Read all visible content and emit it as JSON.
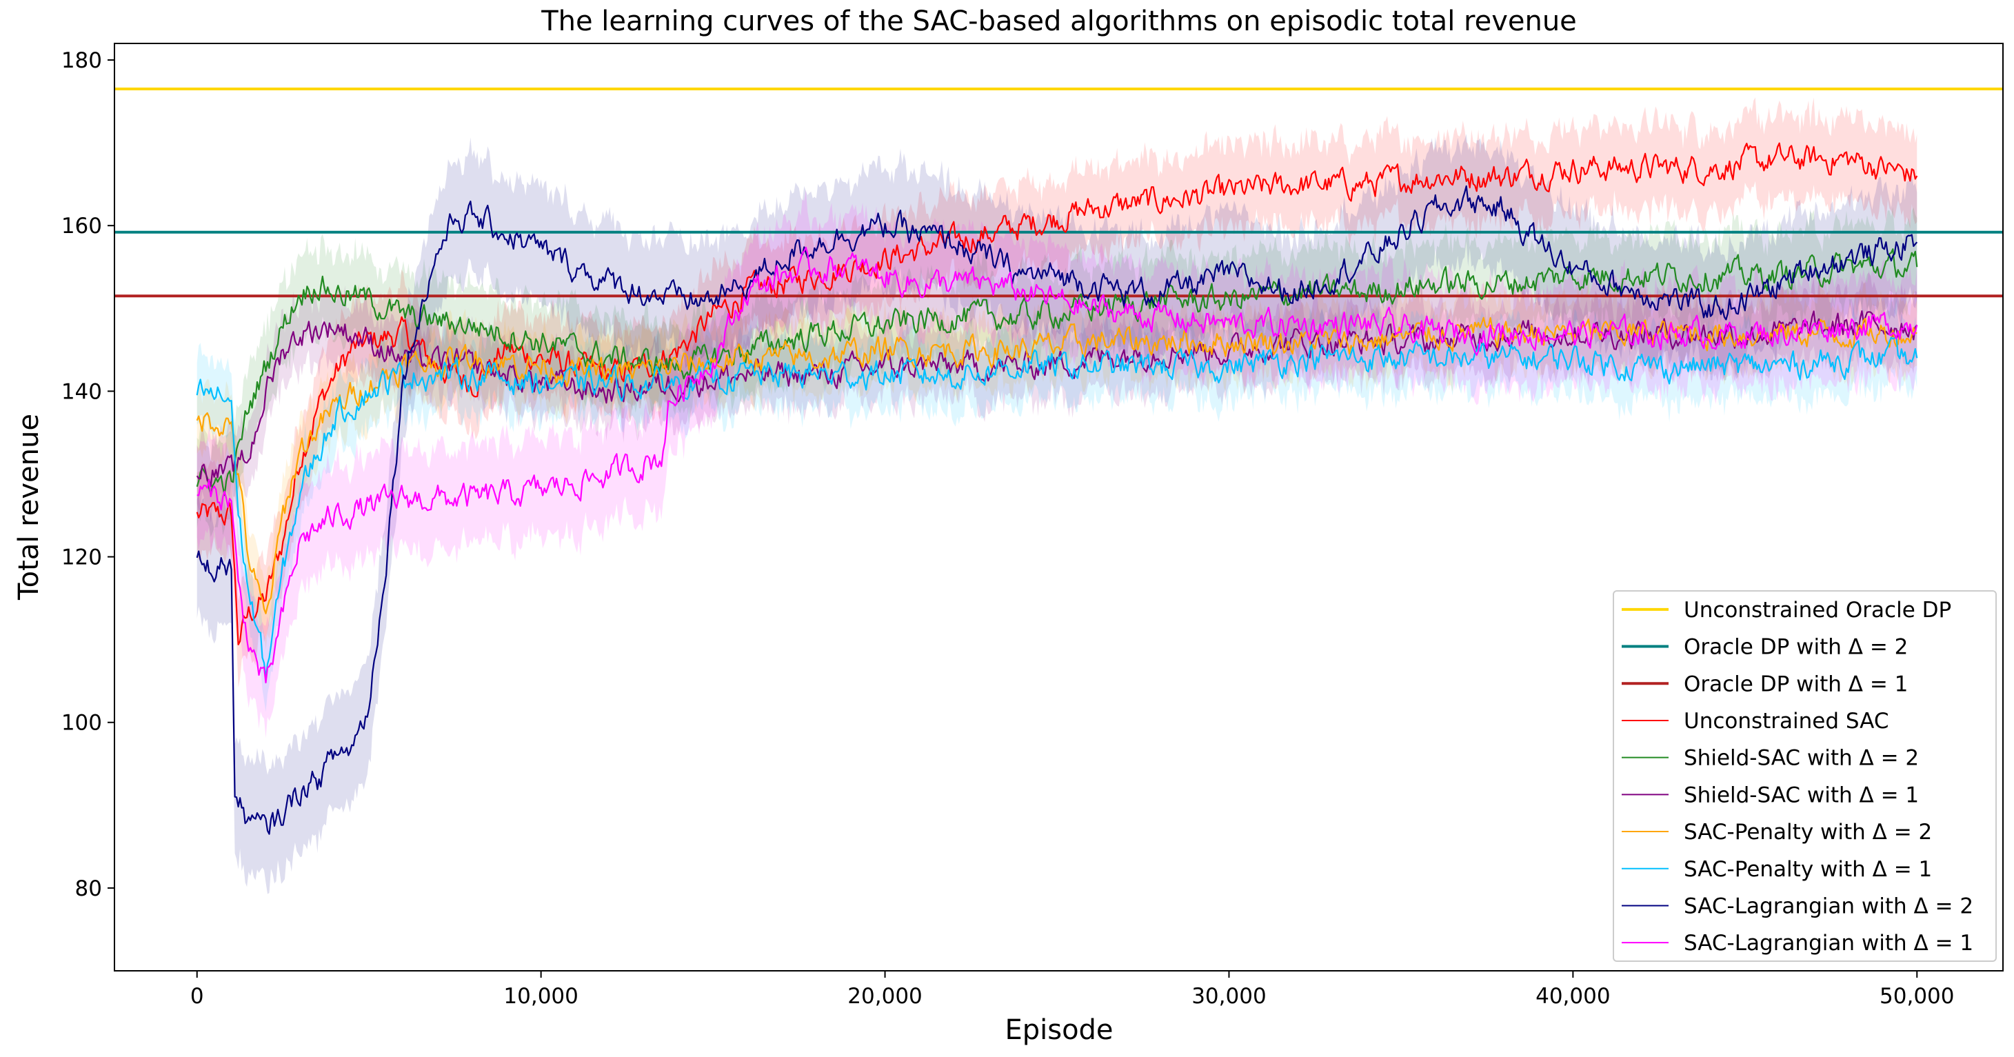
{
  "chart_data": {
    "type": "line",
    "title": "The learning curves of the SAC-based algorithms on episodic total revenue",
    "xlabel": "Episode",
    "ylabel": "Total revenue",
    "xlim": [
      -2400,
      52500
    ],
    "ylim": [
      70,
      182
    ],
    "xticks": [
      0,
      10000,
      20000,
      30000,
      40000,
      50000
    ],
    "xtick_labels": [
      "0",
      "10,000",
      "20,000",
      "30,000",
      "40,000",
      "50,000"
    ],
    "yticks": [
      80,
      100,
      120,
      140,
      160,
      180
    ],
    "ytick_labels": [
      "80",
      "100",
      "120",
      "140",
      "160",
      "180"
    ],
    "grid": false,
    "legend_position": "lower right",
    "reference_lines": [
      {
        "name": "Unconstrained Oracle DP",
        "y": 176.5,
        "color": "#ffd700"
      },
      {
        "name": "Oracle DP with Δ = 2",
        "y": 159.2,
        "color": "#008080"
      },
      {
        "name": "Oracle DP with Δ = 1",
        "y": 151.5,
        "color": "#b22222"
      }
    ],
    "series": [
      {
        "name": "Unconstrained SAC",
        "color": "#ff0000",
        "band": 5,
        "x": [
          0,
          1000,
          1200,
          1500,
          2000,
          2500,
          3000,
          3500,
          4000,
          4500,
          5000,
          6000,
          7000,
          8000,
          9000,
          10000,
          11000,
          12000,
          13000,
          14000,
          15000,
          16000,
          18000,
          20000,
          22000,
          24000,
          26000,
          28000,
          30000,
          32000,
          34000,
          36000,
          38000,
          40000,
          42000,
          44000,
          46000,
          48000,
          50000
        ],
        "y": [
          125,
          125,
          110,
          113,
          115,
          122,
          132,
          138,
          142,
          145,
          146,
          147,
          143,
          141,
          145,
          144,
          143,
          142,
          143,
          145,
          149,
          152,
          154,
          156,
          158,
          160,
          162,
          163,
          164,
          165,
          165,
          166,
          166,
          167,
          167,
          167,
          168,
          168,
          166
        ]
      },
      {
        "name": "Shield-SAC with Δ = 2",
        "color": "#228b22",
        "band": 5,
        "x": [
          0,
          1000,
          1500,
          2000,
          2500,
          3000,
          3500,
          4000,
          5000,
          6000,
          8000,
          10000,
          12000,
          14000,
          16000,
          18000,
          20000,
          22000,
          24000,
          26000,
          28000,
          30000,
          32000,
          34000,
          36000,
          38000,
          40000,
          42000,
          44000,
          46000,
          48000,
          50000
        ],
        "y": [
          129,
          129,
          138,
          143,
          148,
          152,
          153,
          152,
          151,
          149,
          148,
          146,
          144,
          143,
          145,
          147,
          148,
          149,
          149,
          150,
          151,
          151,
          152,
          152,
          153,
          153,
          154,
          154,
          154,
          154,
          155,
          155
        ]
      },
      {
        "name": "Shield-SAC with Δ = 1",
        "color": "#800080",
        "band": 4,
        "x": [
          0,
          1000,
          1500,
          2000,
          2500,
          3000,
          4000,
          5000,
          6000,
          8000,
          10000,
          12000,
          14000,
          16000,
          18000,
          20000,
          22000,
          24000,
          26000,
          28000,
          30000,
          32000,
          34000,
          36000,
          38000,
          40000,
          42000,
          44000,
          46000,
          48000,
          50000
        ],
        "y": [
          131,
          130,
          132,
          140,
          145,
          147,
          148,
          146,
          144,
          143,
          141,
          140,
          141,
          142,
          142,
          143,
          143,
          143,
          144,
          145,
          145,
          146,
          146,
          146,
          147,
          147,
          147,
          147,
          147,
          148,
          148
        ]
      },
      {
        "name": "SAC-Penalty with Δ = 2",
        "color": "#ffa500",
        "band": 4,
        "x": [
          0,
          1000,
          1500,
          2000,
          2500,
          3000,
          4000,
          5000,
          6000,
          8000,
          10000,
          12000,
          14000,
          16000,
          18000,
          20000,
          22000,
          24000,
          26000,
          28000,
          30000,
          32000,
          34000,
          36000,
          38000,
          40000,
          42000,
          44000,
          46000,
          48000,
          50000
        ],
        "y": [
          137,
          136,
          120,
          112,
          125,
          133,
          138,
          141,
          143,
          144,
          143,
          142,
          143,
          144,
          144,
          145,
          145,
          145,
          146,
          146,
          146,
          146,
          146,
          147,
          147,
          147,
          147,
          147,
          147,
          147,
          147
        ]
      },
      {
        "name": "SAC-Penalty with Δ = 1",
        "color": "#00bfff",
        "band": 4,
        "x": [
          0,
          1000,
          1200,
          1500,
          2000,
          2500,
          3000,
          4000,
          5000,
          6000,
          8000,
          10000,
          12000,
          14000,
          16000,
          18000,
          20000,
          22000,
          24000,
          26000,
          28000,
          30000,
          32000,
          34000,
          36000,
          38000,
          40000,
          42000,
          44000,
          46000,
          48000,
          50000
        ],
        "y": [
          140,
          139,
          125,
          116,
          106,
          118,
          128,
          137,
          140,
          142,
          142,
          141,
          141,
          141,
          142,
          142,
          142,
          142,
          143,
          143,
          143,
          143,
          144,
          144,
          144,
          144,
          144,
          143,
          143,
          143,
          144,
          144
        ]
      },
      {
        "name": "SAC-Lagrangian with Δ = 2",
        "color": "#000080",
        "band": 7,
        "x": [
          0,
          1000,
          1100,
          1500,
          2000,
          2500,
          3000,
          3500,
          4000,
          4500,
          5000,
          5500,
          6000,
          6500,
          7000,
          7500,
          8000,
          9000,
          10000,
          11000,
          12000,
          13000,
          14000,
          15000,
          16000,
          17000,
          18000,
          19000,
          20000,
          21000,
          22000,
          23000,
          24000,
          25000,
          26000,
          27000,
          28000,
          29000,
          30000,
          31000,
          32000,
          33000,
          34000,
          35000,
          36000,
          37000,
          38000,
          39000,
          40000,
          41000,
          42000,
          43000,
          44000,
          45000,
          46000,
          47000,
          48000,
          49000,
          50000
        ],
        "y": [
          119,
          119,
          91,
          88,
          87,
          89,
          92,
          93,
          96,
          97,
          102,
          120,
          142,
          150,
          157,
          161,
          161,
          159,
          157,
          155,
          153,
          152,
          151,
          151,
          153,
          156,
          158,
          159,
          160,
          159,
          158,
          156,
          154,
          154,
          153,
          152,
          152,
          153,
          154,
          153,
          152,
          154,
          156,
          159,
          162,
          163,
          162,
          158,
          155,
          153,
          152,
          151,
          150,
          151,
          153,
          155,
          156,
          157,
          158
        ]
      },
      {
        "name": "SAC-Lagrangian with Δ = 1",
        "color": "#ff00ff",
        "band": 6,
        "x": [
          0,
          1000,
          1200,
          1500,
          2000,
          2500,
          3000,
          4000,
          5000,
          6000,
          8000,
          10000,
          12000,
          13500,
          13700,
          14000,
          15000,
          16000,
          17000,
          18000,
          19000,
          20000,
          21000,
          22000,
          23000,
          24000,
          25000,
          26000,
          28000,
          30000,
          32000,
          34000,
          36000,
          38000,
          40000,
          42000,
          44000,
          46000,
          48000,
          50000
        ],
        "y": [
          128,
          127,
          116,
          110,
          104,
          113,
          122,
          125,
          126,
          127,
          127,
          128,
          130,
          132,
          138,
          140,
          144,
          152,
          154,
          155,
          155,
          154,
          153,
          153,
          153,
          152,
          151,
          150,
          149,
          148,
          148,
          148,
          147,
          147,
          147,
          147,
          147,
          147,
          148,
          148
        ]
      }
    ]
  }
}
